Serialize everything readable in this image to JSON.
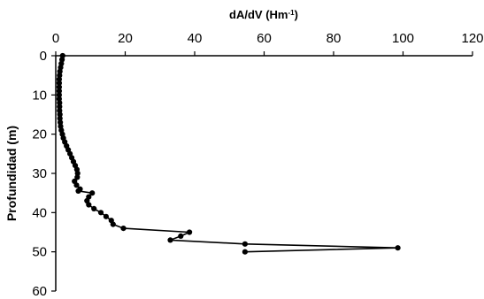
{
  "chart_data": {
    "type": "line",
    "title": "",
    "xlabel": "dA/dV (Hm",
    "xlabel_superscript": "-1",
    "xlabel_suffix": ")",
    "ylabel": "Profundidad (m)",
    "x_axis_position": "top",
    "y_axis_inverted": true,
    "xlim": [
      0,
      120
    ],
    "ylim": [
      0,
      60
    ],
    "x_ticks": [
      "0",
      "20",
      "40",
      "60",
      "80",
      "100",
      "120"
    ],
    "y_ticks": [
      "0",
      "10",
      "20",
      "30",
      "40",
      "50",
      "60"
    ],
    "grid": false,
    "legend": "none",
    "line_color": "#000000",
    "marker": "circle",
    "series": [
      {
        "points": [
          [
            2.0,
            0
          ],
          [
            1.8,
            1
          ],
          [
            1.6,
            2
          ],
          [
            1.4,
            3
          ],
          [
            1.2,
            4
          ],
          [
            1.1,
            5
          ],
          [
            1.0,
            6
          ],
          [
            1.0,
            7
          ],
          [
            1.0,
            8
          ],
          [
            1.0,
            9
          ],
          [
            1.0,
            10
          ],
          [
            1.0,
            11
          ],
          [
            1.1,
            12
          ],
          [
            1.1,
            13
          ],
          [
            1.1,
            14
          ],
          [
            1.2,
            15
          ],
          [
            1.2,
            16
          ],
          [
            1.3,
            17
          ],
          [
            1.4,
            18
          ],
          [
            1.6,
            19
          ],
          [
            1.9,
            20
          ],
          [
            2.2,
            21
          ],
          [
            2.6,
            22
          ],
          [
            3.1,
            23
          ],
          [
            3.6,
            24
          ],
          [
            4.1,
            25
          ],
          [
            4.6,
            26
          ],
          [
            5.1,
            27
          ],
          [
            5.6,
            28
          ],
          [
            6.1,
            29
          ],
          [
            6.3,
            30
          ],
          [
            6.2,
            31
          ],
          [
            5.4,
            32
          ],
          [
            6.0,
            33
          ],
          [
            7.0,
            34
          ],
          [
            6.5,
            34.5
          ],
          [
            10.5,
            35
          ],
          [
            9.5,
            36
          ],
          [
            9.0,
            37
          ],
          [
            9.5,
            38
          ],
          [
            11.0,
            39
          ],
          [
            13.0,
            40
          ],
          [
            14.5,
            41
          ],
          [
            16.0,
            42
          ],
          [
            16.5,
            43
          ],
          [
            19.5,
            44
          ],
          [
            38.5,
            45
          ],
          [
            36.0,
            46
          ],
          [
            33.0,
            47
          ],
          [
            54.5,
            48
          ],
          [
            98.5,
            49
          ],
          [
            54.5,
            50
          ]
        ]
      }
    ]
  }
}
